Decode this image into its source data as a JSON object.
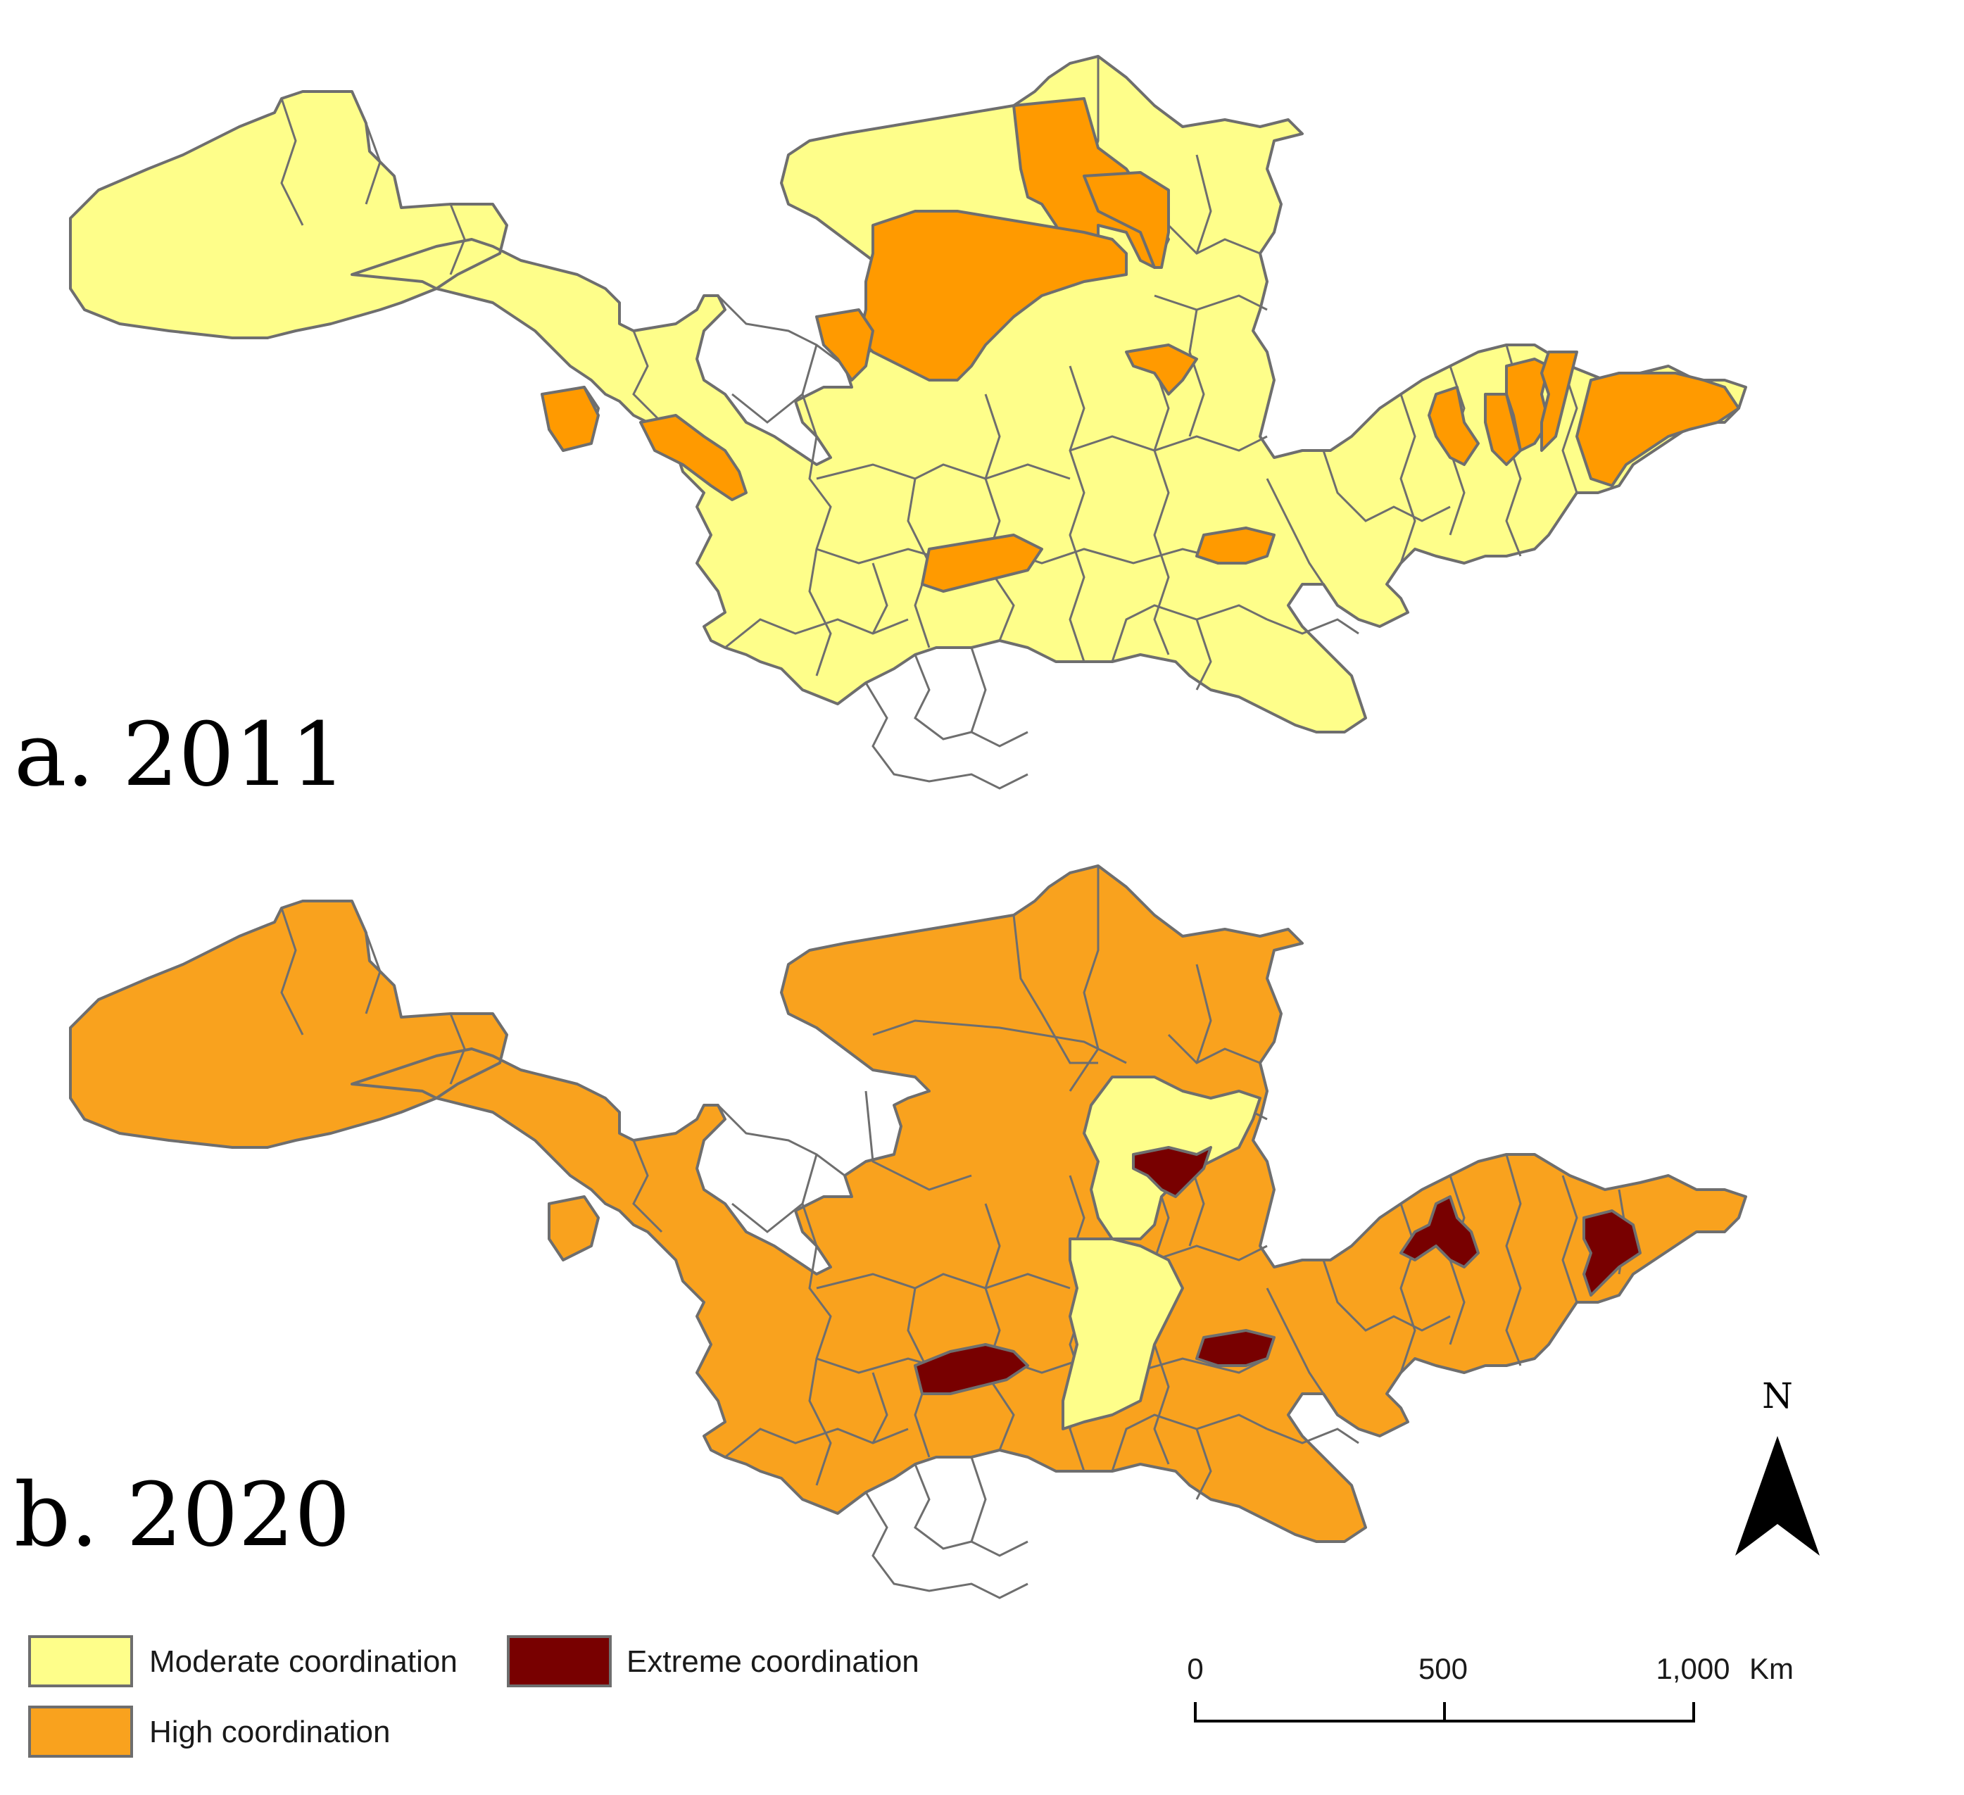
{
  "panels": [
    {
      "label": "a. 2011"
    },
    {
      "label": "b. 2020"
    }
  ],
  "legend": {
    "items": [
      {
        "label": "Moderate coordination",
        "color": "#FEFE8A"
      },
      {
        "label": "High coordination",
        "color": "#F9A21E"
      },
      {
        "label": "Extreme coordination",
        "color": "#780000"
      }
    ]
  },
  "map_colors": {
    "moderate": "#FEFE8A",
    "high_2011": "#FF9A00",
    "high_2020": "#F9A21E",
    "extreme": "#780000",
    "border": "#6E6E6E"
  },
  "scale_bar": {
    "ticks": [
      "0",
      "500",
      "1,000"
    ],
    "unit": "Km"
  },
  "north_arrow": {
    "label": "N"
  }
}
